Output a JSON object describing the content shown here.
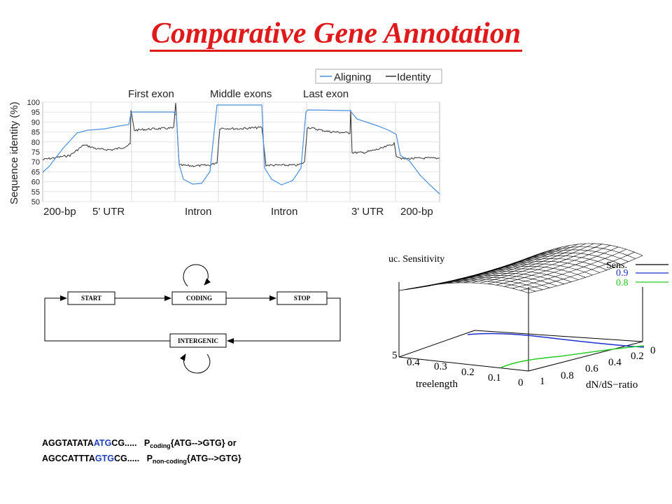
{
  "title": "Comparative Gene Annotation",
  "alignment_chart": {
    "legend": [
      "Aligning",
      "Identity"
    ],
    "ylabel": "Sequence identity (%)",
    "yticks": [
      "100",
      "95",
      "90",
      "85",
      "80",
      "75",
      "70",
      "65",
      "60",
      "55",
      "50"
    ],
    "top_labels": [
      "First exon",
      "Middle exons",
      "Last exon"
    ],
    "bottom_labels": [
      "200-bp",
      "5' UTR",
      "Intron",
      "Intron",
      "3' UTR",
      "200-bp"
    ],
    "colors": {
      "aligning": "#4a90d9",
      "identity": "#333333"
    }
  },
  "state_diagram": {
    "states": [
      "START",
      "CODING",
      "STOP",
      "INTERGENIC"
    ]
  },
  "surface_plot": {
    "title": "uc. Sensitivity",
    "legend": [
      "Sens.",
      "0.9",
      "0.8"
    ],
    "legend_colors": [
      "#000000",
      "#1f2fcf",
      "#22cc22"
    ],
    "x_axis_label": "treelength",
    "x_ticks": [
      "5",
      "0.4",
      "0.3",
      "0.2",
      "0.1",
      "0"
    ],
    "y_axis_label": "dN/dS−ratio",
    "y_ticks": [
      "1",
      "0.8",
      "0.6",
      "0.4",
      "0.2",
      "0"
    ]
  },
  "sequences": {
    "line1": {
      "prefix": "AGGTATATA",
      "codon": "ATG",
      "suffix": "CG.....",
      "p": "P",
      "sub": "coding",
      "expr": "{ATG-->GTG} or"
    },
    "line2": {
      "prefix": "AGCCATTTA",
      "codon": "GTG",
      "suffix": "CG.....",
      "p": "P",
      "sub": "non-coding",
      "expr": "{ATG-->GTG}"
    }
  }
}
